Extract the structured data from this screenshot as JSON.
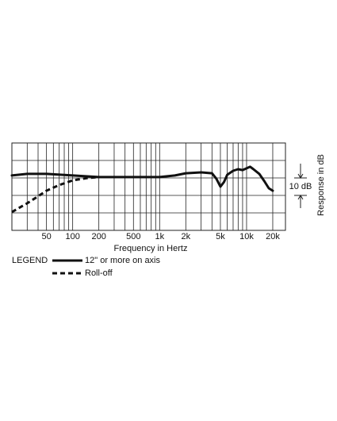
{
  "chart_data": {
    "type": "line",
    "xlabel": "Frequency in Hertz",
    "ylabel": "Response in dB",
    "xscale": "log",
    "xlim": [
      20,
      28000
    ],
    "ylim": [
      -30,
      20
    ],
    "xticks": [
      50,
      100,
      200,
      500,
      {
        "value": 1000,
        "label": "1k"
      },
      {
        "value": 2000,
        "label": "2k"
      },
      {
        "value": 5000,
        "label": "5k"
      },
      {
        "value": 10000,
        "label": "10k"
      },
      {
        "value": 20000,
        "label": "20k"
      }
    ],
    "xgrid": [
      30,
      40,
      50,
      60,
      70,
      80,
      90,
      100,
      200,
      300,
      400,
      500,
      600,
      700,
      800,
      900,
      1000,
      2000,
      3000,
      4000,
      5000,
      6000,
      7000,
      8000,
      9000,
      10000,
      20000
    ],
    "ygrid": [
      -30,
      -20,
      -10,
      0,
      10,
      20
    ],
    "scale_bar": {
      "label": "10 dB",
      "from": -10,
      "to": 0
    },
    "legend_title": "LEGEND",
    "series": [
      {
        "name": "12\" or more on axis",
        "style": "solid",
        "color": "#111111",
        "x": [
          20,
          30,
          50,
          100,
          200,
          500,
          1000,
          1500,
          2000,
          3000,
          4000,
          4500,
          5000,
          5500,
          6000,
          7000,
          8000,
          9000,
          10000,
          11000,
          12000,
          14000,
          16000,
          18000,
          20000
        ],
        "values": [
          1.4,
          2.3,
          2.3,
          1.4,
          0.5,
          0.5,
          0.5,
          1.4,
          2.7,
          3.2,
          2.7,
          -0.5,
          -5,
          -2.3,
          1.8,
          4.1,
          5,
          4.5,
          5.5,
          6.4,
          5,
          2.3,
          -1.8,
          -5.9,
          -7.3
        ]
      },
      {
        "name": "Roll-off",
        "style": "dashed",
        "color": "#111111",
        "x": [
          20,
          30,
          40,
          50,
          70,
          100,
          150,
          200
        ],
        "values": [
          -19.5,
          -14.5,
          -10.5,
          -7.3,
          -4.1,
          -1.4,
          0,
          0.5
        ]
      }
    ]
  }
}
